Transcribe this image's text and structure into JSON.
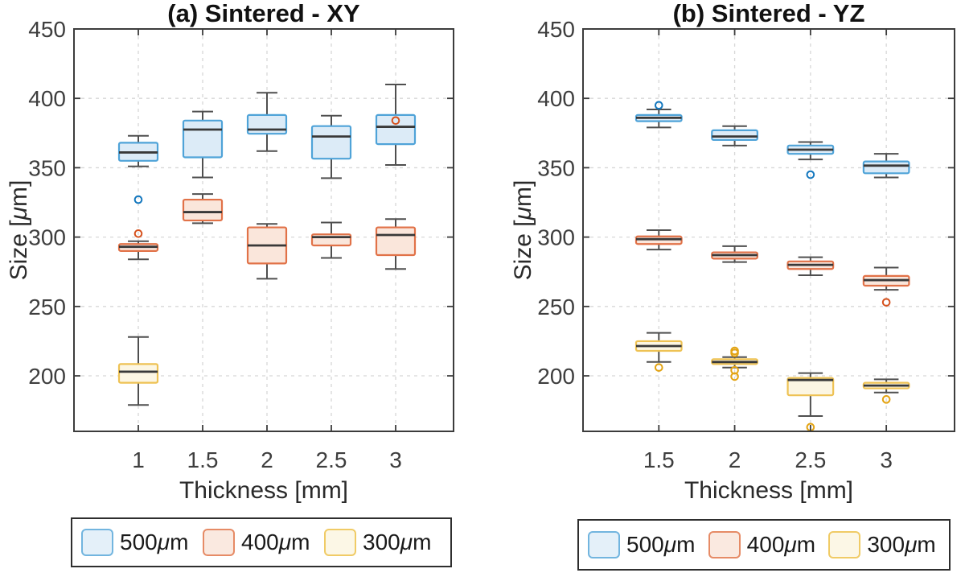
{
  "style": {
    "background": "#ffffff",
    "axis_color": "#3c3c3c",
    "grid_color": "#d7d7d7",
    "tick_color": "#3e3e3e",
    "label_color": "#2a2a2a",
    "title_color": "#111111",
    "whisker_color": "#4f4f4f",
    "median_color": "#393939"
  },
  "legend": {
    "items": [
      {
        "label": "500μm",
        "edge": "#72b5df",
        "fill": "#e4f0f9"
      },
      {
        "label": "400μm",
        "edge": "#e68b66",
        "fill": "#fae9e0"
      },
      {
        "label": "300μm",
        "edge": "#f0cb66",
        "fill": "#fcf7e6"
      }
    ]
  },
  "chart_data": [
    {
      "type": "boxplot",
      "title": "(a) Sintered - XY",
      "xlabel": "Thickness [mm]",
      "ylabel": "Size [μm]",
      "xlim": [
        0.5,
        3.45
      ],
      "ylim": [
        160,
        450
      ],
      "grid": true,
      "box_width": 0.3,
      "yticks": [
        200,
        250,
        300,
        350,
        400,
        450
      ],
      "ytick_labels": [
        "200",
        "250",
        "300",
        "350",
        "400",
        "450"
      ],
      "xticks": [
        1,
        1.5,
        2,
        2.5,
        3
      ],
      "xtick_labels": [
        "1",
        "1.5",
        "2",
        "2.5",
        "3"
      ],
      "series": [
        {
          "name": "500μm",
          "edge": "#4fa3d8",
          "fill": "#dcebf7",
          "outlier_color": "#1377be",
          "boxes": [
            {
              "x": 1,
              "whisker_low": 351,
              "q1": 355,
              "median": 361,
              "q3": 368,
              "whisker_high": 373,
              "outliers": [
                327
              ]
            },
            {
              "x": 1.5,
              "whisker_low": 343,
              "q1": 357.5,
              "median": 377.5,
              "q3": 384,
              "whisker_high": 390.5,
              "outliers": []
            },
            {
              "x": 2,
              "whisker_low": 362,
              "q1": 374.5,
              "median": 377.5,
              "q3": 388,
              "whisker_high": 404,
              "outliers": []
            },
            {
              "x": 2.5,
              "whisker_low": 342.5,
              "q1": 356.5,
              "median": 372.5,
              "q3": 380,
              "whisker_high": 387.5,
              "outliers": []
            },
            {
              "x": 3,
              "whisker_low": 352,
              "q1": 367,
              "median": 379.5,
              "q3": 388,
              "whisker_high": 410,
              "outliers": []
            }
          ]
        },
        {
          "name": "400μm",
          "edge": "#e17248",
          "fill": "#fae6db",
          "outlier_color": "#d6511d",
          "boxes": [
            {
              "x": 1,
              "whisker_low": 284,
              "q1": 290,
              "median": 293,
              "q3": 295,
              "whisker_high": 297,
              "outliers": [
                302.5
              ]
            },
            {
              "x": 1.5,
              "whisker_low": 310,
              "q1": 312,
              "median": 318,
              "q3": 327,
              "whisker_high": 331,
              "outliers": []
            },
            {
              "x": 2,
              "whisker_low": 270,
              "q1": 281,
              "median": 294,
              "q3": 307,
              "whisker_high": 309.5,
              "outliers": []
            },
            {
              "x": 2.5,
              "whisker_low": 285,
              "q1": 294,
              "median": 300,
              "q3": 302,
              "whisker_high": 310.5,
              "outliers": []
            },
            {
              "x": 3,
              "whisker_low": 277,
              "q1": 287,
              "median": 301.5,
              "q3": 307,
              "whisker_high": 313,
              "outliers": [
                384
              ]
            }
          ]
        },
        {
          "name": "300μm",
          "edge": "#eec254",
          "fill": "#fcf6e3",
          "outlier_color": "#e3a312",
          "boxes": [
            {
              "x": 1,
              "whisker_low": 179,
              "q1": 195,
              "median": 203,
              "q3": 208.5,
              "whisker_high": 228,
              "outliers": []
            }
          ]
        }
      ]
    },
    {
      "type": "boxplot",
      "title": "(b) Sintered - YZ",
      "xlabel": "Thickness [mm]",
      "ylabel": "Size [μm]",
      "xlim": [
        1.0,
        3.45
      ],
      "ylim": [
        160,
        450
      ],
      "grid": true,
      "box_width": 0.3,
      "yticks": [
        200,
        250,
        300,
        350,
        400,
        450
      ],
      "ytick_labels": [
        "200",
        "250",
        "300",
        "350",
        "400",
        "450"
      ],
      "xticks": [
        1.5,
        2,
        2.5,
        3
      ],
      "xtick_labels": [
        "1.5",
        "2",
        "2.5",
        "3"
      ],
      "series": [
        {
          "name": "500μm",
          "edge": "#4fa3d8",
          "fill": "#dcebf7",
          "outlier_color": "#1377be",
          "boxes": [
            {
              "x": 1.5,
              "whisker_low": 379,
              "q1": 383.5,
              "median": 386,
              "q3": 388,
              "whisker_high": 392,
              "outliers": [
                395
              ]
            },
            {
              "x": 2,
              "whisker_low": 366,
              "q1": 370,
              "median": 372.5,
              "q3": 377,
              "whisker_high": 380,
              "outliers": []
            },
            {
              "x": 2.5,
              "whisker_low": 356,
              "q1": 360,
              "median": 363,
              "q3": 366,
              "whisker_high": 368.5,
              "outliers": [
                345
              ]
            },
            {
              "x": 3,
              "whisker_low": 343,
              "q1": 346,
              "median": 351.5,
              "q3": 354.5,
              "whisker_high": 360,
              "outliers": []
            }
          ]
        },
        {
          "name": "400μm",
          "edge": "#e17248",
          "fill": "#fae6db",
          "outlier_color": "#d6511d",
          "boxes": [
            {
              "x": 1.5,
              "whisker_low": 291,
              "q1": 295,
              "median": 298.5,
              "q3": 300.5,
              "whisker_high": 305,
              "outliers": []
            },
            {
              "x": 2,
              "whisker_low": 282,
              "q1": 284.5,
              "median": 287,
              "q3": 289,
              "whisker_high": 293.5,
              "outliers": []
            },
            {
              "x": 2.5,
              "whisker_low": 272.5,
              "q1": 277,
              "median": 280,
              "q3": 282.5,
              "whisker_high": 285.5,
              "outliers": []
            },
            {
              "x": 3,
              "whisker_low": 262,
              "q1": 265,
              "median": 269,
              "q3": 272,
              "whisker_high": 278,
              "outliers": [
                253
              ]
            }
          ]
        },
        {
          "name": "300μm",
          "edge": "#eec254",
          "fill": "#fcf6e3",
          "outlier_color": "#e3a312",
          "boxes": [
            {
              "x": 1.5,
              "whisker_low": 210,
              "q1": 218,
              "median": 221.5,
              "q3": 225,
              "whisker_high": 231,
              "outliers": [
                206
              ]
            },
            {
              "x": 2,
              "whisker_low": 206,
              "q1": 208.5,
              "median": 210,
              "q3": 212,
              "whisker_high": 213.5,
              "outliers": [
                218,
                216.5,
                204,
                199.5
              ]
            },
            {
              "x": 2.5,
              "whisker_low": 171,
              "q1": 186,
              "median": 197,
              "q3": 198.5,
              "whisker_high": 202,
              "outliers": [
                163
              ]
            },
            {
              "x": 3,
              "whisker_low": 188,
              "q1": 191,
              "median": 193,
              "q3": 195,
              "whisker_high": 197.5,
              "outliers": [
                183
              ]
            }
          ]
        }
      ]
    }
  ]
}
